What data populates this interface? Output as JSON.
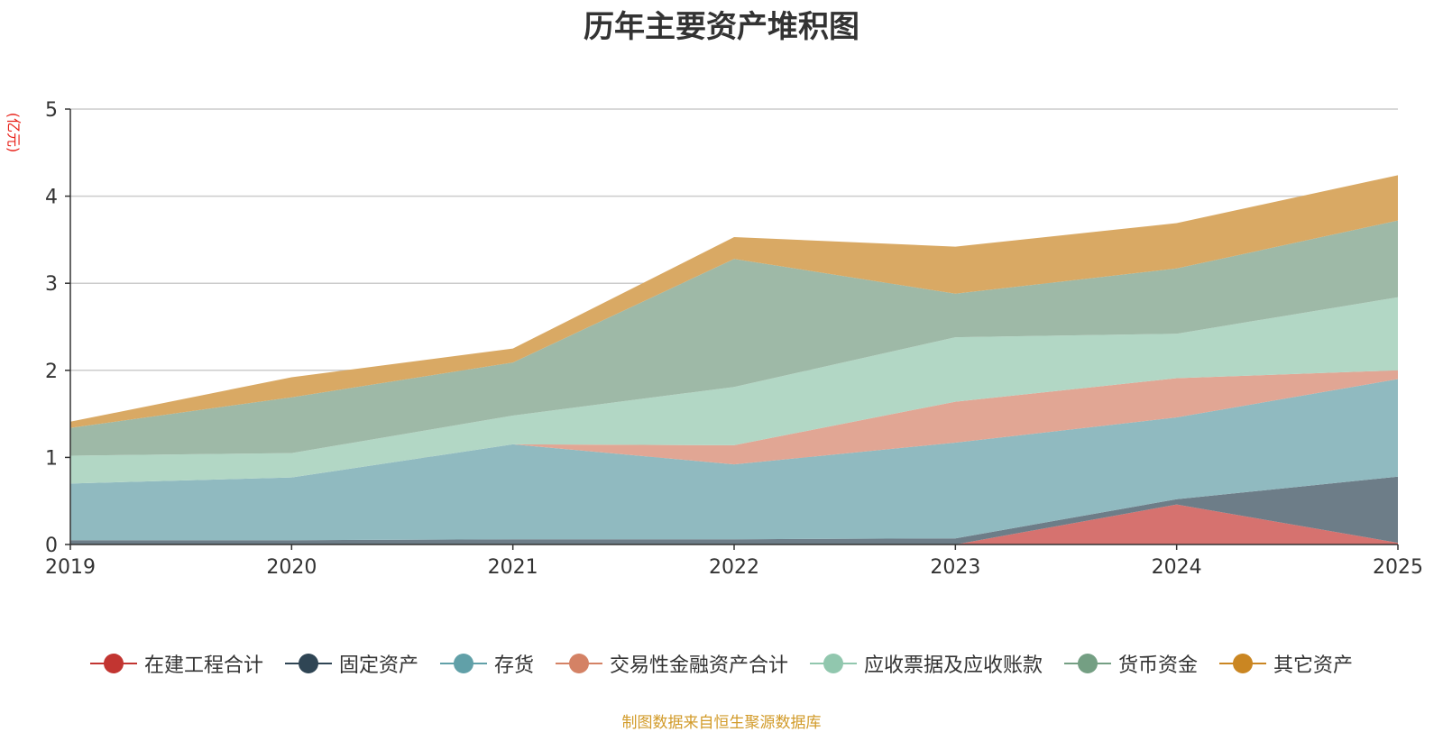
{
  "chart_data": {
    "type": "area",
    "stacked": true,
    "title": "历年主要资产堆积图",
    "ylabel": "(亿元)",
    "x": [
      "2019",
      "2020",
      "2021",
      "2022",
      "2023",
      "2024",
      "2025"
    ],
    "ylim": [
      0,
      5
    ],
    "yticks": [
      "0",
      "1",
      "2",
      "3",
      "4",
      "5"
    ],
    "grid": true,
    "legend_position": "bottom",
    "source": "制图数据来自恒生聚源数据库",
    "series": [
      {
        "name": "在建工程合计",
        "color": "#c23531",
        "fill": "#d6726f",
        "values": [
          0.0,
          0.0,
          0.0,
          0.0,
          0.0,
          0.46,
          0.02
        ]
      },
      {
        "name": "固定资产",
        "color": "#2f4554",
        "fill": "#6d7d88",
        "values": [
          0.05,
          0.05,
          0.06,
          0.06,
          0.07,
          0.06,
          0.76
        ]
      },
      {
        "name": "存货",
        "color": "#61a0a8",
        "fill": "#90bac0",
        "values": [
          0.65,
          0.72,
          1.09,
          0.86,
          1.1,
          0.94,
          1.12
        ]
      },
      {
        "name": "交易性金融资产合计",
        "color": "#d48265",
        "fill": "#e1a694",
        "values": [
          0.0,
          0.0,
          0.0,
          0.22,
          0.47,
          0.45,
          0.1
        ]
      },
      {
        "name": "应收票据及应收账款",
        "color": "#91c7ae",
        "fill": "#b2d7c5",
        "values": [
          0.32,
          0.28,
          0.33,
          0.67,
          0.74,
          0.51,
          0.84
        ]
      },
      {
        "name": "货币资金",
        "color": "#749f83",
        "fill": "#9eb9a7",
        "values": [
          0.32,
          0.64,
          0.61,
          1.47,
          0.5,
          0.75,
          0.88
        ]
      },
      {
        "name": "其它资产",
        "color": "#ca8622",
        "fill": "#d9a964",
        "values": [
          0.07,
          0.23,
          0.16,
          0.25,
          0.54,
          0.52,
          0.52
        ]
      }
    ]
  }
}
